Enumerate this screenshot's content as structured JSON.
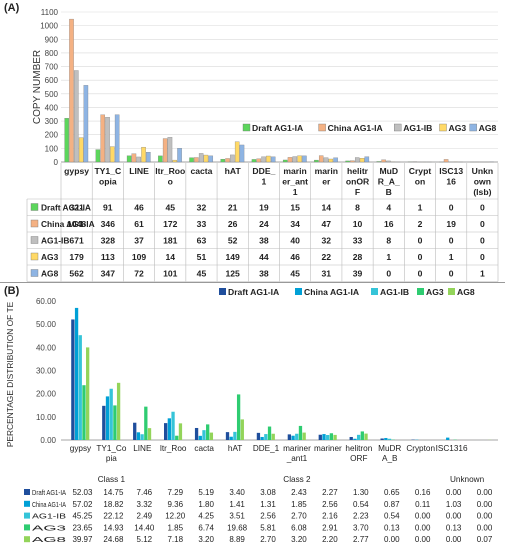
{
  "colors": {
    "A": [
      "#5cd65c",
      "#f4b183",
      "#bfbfbf",
      "#ffd966",
      "#8eb4e3"
    ],
    "B": [
      "#1f4e9c",
      "#00a0d6",
      "#35c4d8",
      "#2ecc71",
      "#93d45a"
    ]
  },
  "chart_data": [
    {
      "panel_label": "(A)",
      "type": "bar",
      "ylabel": "COPY NUMBER",
      "ylim": [
        0,
        1100
      ],
      "yticks": [
        "0",
        "100",
        "200",
        "300",
        "400",
        "500",
        "600",
        "700",
        "800",
        "900",
        "1000",
        "1100"
      ],
      "grid": true,
      "legend_position": "inside-right",
      "categories": [
        "gypsy",
        "TY1_C\nopia",
        "LINE",
        "ltr_Roo\no",
        "cacta",
        "hAT",
        "DDE_\n1",
        "marin\ner_ant\n1",
        "marin\ner",
        "helitr\nonOR\nF",
        "MuD\nR_A_\nB",
        "Crypt\non",
        "ISC13\n16",
        "Unkn\nown\n(lsb)"
      ],
      "series": [
        {
          "name": "Draft AG1-IA",
          "values": [
            321,
            91,
            46,
            45,
            32,
            21,
            19,
            15,
            14,
            8,
            4,
            1,
            0,
            0
          ]
        },
        {
          "name": "China AG1-IA",
          "values": [
            1048,
            346,
            61,
            172,
            33,
            26,
            24,
            34,
            47,
            10,
            16,
            2,
            19,
            0
          ]
        },
        {
          "name": "AG1-IB",
          "values": [
            671,
            328,
            37,
            181,
            63,
            52,
            38,
            40,
            32,
            33,
            8,
            0,
            0,
            0
          ]
        },
        {
          "name": "AG3",
          "values": [
            179,
            113,
            109,
            14,
            51,
            149,
            44,
            46,
            22,
            28,
            1,
            0,
            1,
            0
          ]
        },
        {
          "name": "AG8",
          "values": [
            562,
            347,
            72,
            101,
            45,
            125,
            38,
            45,
            31,
            39,
            0,
            0,
            0,
            1
          ]
        }
      ]
    },
    {
      "panel_label": "(B)",
      "type": "bar",
      "ylabel": "PERCENTAGE DISTRIBUTION OF TE",
      "ylim": [
        0,
        60
      ],
      "yticks": [
        "0.00",
        "10.00",
        "20.00",
        "30.00",
        "40.00",
        "50.00",
        "60.00"
      ],
      "grid": false,
      "legend_position": "top",
      "categories": [
        "gypsy",
        "TY1_Co\npia",
        "LINE",
        "ltr_Roo",
        "cacta",
        "hAT",
        "DDE_1",
        "mariner\n_ant1",
        "mariner",
        "helitron\nORF",
        "MuDR\nA_B",
        "Crypton",
        "ISC1316",
        ""
      ],
      "class_labels": [
        "Class 1",
        "Class 2",
        "Unknown"
      ],
      "series": [
        {
          "name": "Draft AG1-IA",
          "values": [
            52.03,
            14.75,
            7.46,
            7.29,
            5.19,
            3.4,
            3.08,
            2.43,
            2.27,
            1.3,
            0.65,
            0.16,
            0.0,
            0.0
          ]
        },
        {
          "name": "China AG1-IA",
          "values": [
            57.02,
            18.82,
            3.32,
            9.36,
            1.8,
            1.41,
            1.31,
            1.85,
            2.56,
            0.54,
            0.87,
            0.11,
            1.03,
            0.0
          ]
        },
        {
          "name": "AG1-IB",
          "values": [
            45.25,
            22.12,
            2.49,
            12.2,
            4.25,
            3.51,
            2.56,
            2.7,
            2.16,
            2.23,
            0.54,
            0.0,
            0.0,
            0.0
          ]
        },
        {
          "name": "AG3",
          "values": [
            23.65,
            14.93,
            14.4,
            1.85,
            6.74,
            19.68,
            5.81,
            6.08,
            2.91,
            3.7,
            0.13,
            0.0,
            0.13,
            0.0
          ]
        },
        {
          "name": "AG8",
          "values": [
            39.97,
            24.68,
            5.12,
            7.18,
            3.2,
            8.89,
            2.7,
            3.2,
            2.2,
            2.77,
            0.0,
            0.0,
            0.0,
            0.07
          ]
        }
      ],
      "table_values": [
        [
          "52.03",
          "14.75",
          "7.46",
          "7.29",
          "5.19",
          "3.40",
          "3.08",
          "2.43",
          "2.27",
          "1.30",
          "0.65",
          "0.16",
          "0.00",
          "0.00"
        ],
        [
          "57.02",
          "18.82",
          "3.32",
          "9.36",
          "1.80",
          "1.41",
          "1.31",
          "1.85",
          "2.56",
          "0.54",
          "0.87",
          "0.11",
          "1.03",
          "0.00"
        ],
        [
          "45.25",
          "22.12",
          "2.49",
          "12.20",
          "4.25",
          "3.51",
          "2.56",
          "2.70",
          "2.16",
          "2.23",
          "0.54",
          "0.00",
          "0.00",
          "0.00"
        ],
        [
          "23.65",
          "14.93",
          "14.40",
          "1.85",
          "6.74",
          "19.68",
          "5.81",
          "6.08",
          "2.91",
          "3.70",
          "0.13",
          "0.00",
          "0.13",
          "0.00"
        ],
        [
          "39.97",
          "24.68",
          "5.12",
          "7.18",
          "3.20",
          "8.89",
          "2.70",
          "3.20",
          "2.20",
          "2.77",
          "0.00",
          "0.00",
          "0.00",
          "0.07"
        ]
      ]
    }
  ]
}
